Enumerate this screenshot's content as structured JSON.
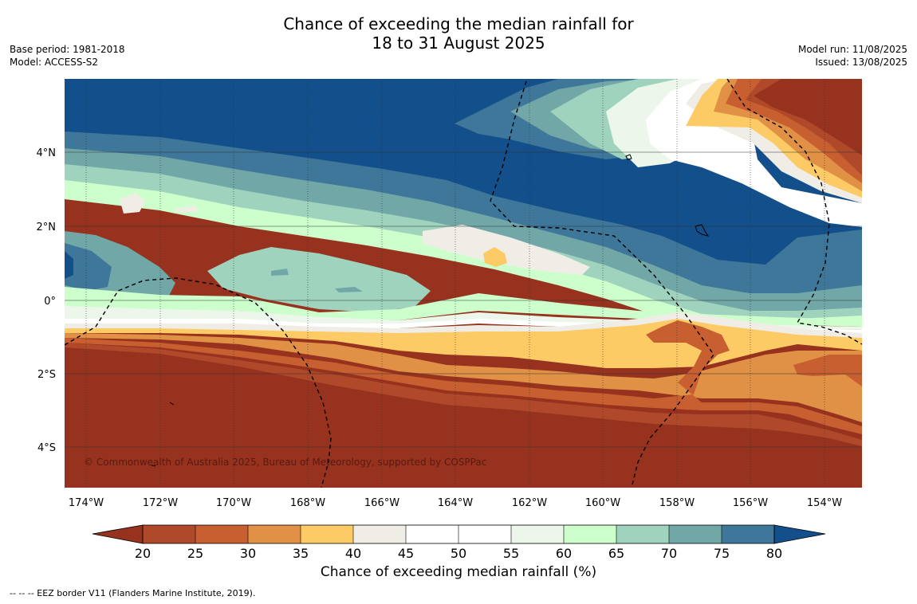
{
  "header": {
    "title_line1": "Chance of exceeding the median rainfall for",
    "title_line2": "18 to 31 August 2025",
    "base_period": "Base period: 1981-2018",
    "model": "Model: ACCESS-S2",
    "model_run": "Model run: 11/08/2025",
    "issued": "Issued: 13/08/2025"
  },
  "map": {
    "lon_labels": [
      "174°W",
      "172°W",
      "170°W",
      "168°W",
      "166°W",
      "164°W",
      "162°W",
      "160°W",
      "158°W",
      "156°W",
      "154°W"
    ],
    "lat_labels": [
      "4°N",
      "2°N",
      "0°",
      "2°S",
      "4°S"
    ],
    "copyright": "© Commonwealth of Australia 2025, Bureau of Meteorology, supported by COSPPac"
  },
  "colorbar": {
    "ticks": [
      "20",
      "25",
      "30",
      "35",
      "40",
      "45",
      "50",
      "55",
      "60",
      "65",
      "70",
      "75",
      "80"
    ],
    "label": "Chance of exceeding median rainfall (%)",
    "colors": {
      "lt20": "#96321e",
      "20": "#b0492a",
      "25": "#c75f31",
      "30": "#e09145",
      "35": "#fdcb66",
      "40": "#f0ede6",
      "45": "#ffffff",
      "50": "#ffffff",
      "55": "#ecf6ea",
      "60": "#ccffcc",
      "65": "#9fd3bd",
      "70": "#72a7a8",
      "75": "#3e7799",
      "gt80": "#134f8a"
    }
  },
  "footnote": "--  --  -- EEZ border V11 (Flanders Marine Institute, 2019)."
}
